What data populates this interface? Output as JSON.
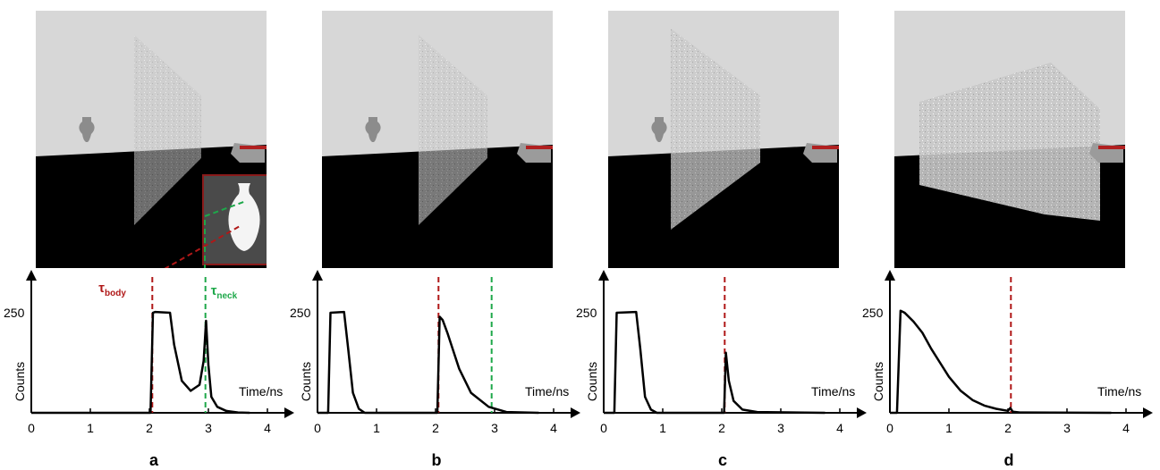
{
  "colors": {
    "wall_bg": "#d7d7d7",
    "floor": "#000000",
    "body_marker": "#b01818",
    "neck_marker": "#1ea84a",
    "curve": "#000000"
  },
  "inset": {
    "present_in_panel": "a",
    "frame_color": "#8a1a1a"
  },
  "labels": {
    "tau_body": "τ",
    "tau_body_sub": "body",
    "tau_neck": "τ",
    "tau_neck_sub": "neck"
  },
  "chart_data": [
    {
      "type": "line",
      "panel_letter": "a",
      "xlabel": "Time/ns",
      "ylabel": "Counts",
      "xlim": [
        0,
        4.3
      ],
      "ylim": [
        0,
        300
      ],
      "xticks": [
        "0",
        "1",
        "2",
        "3",
        "4"
      ],
      "ytick_label": "250",
      "markers": [
        {
          "name": "τbody",
          "x": 2.05,
          "color": "#b01818"
        },
        {
          "name": "τneck",
          "x": 2.95,
          "color": "#1ea84a"
        }
      ],
      "series": [
        {
          "x": [
            0,
            2.02,
            2.06,
            2.1,
            2.35,
            2.42,
            2.55,
            2.7,
            2.85,
            2.92,
            2.96,
            3.0,
            3.05,
            3.15,
            3.3,
            3.5,
            3.7
          ],
          "y": [
            0,
            0,
            250,
            252,
            250,
            170,
            80,
            55,
            70,
            130,
            230,
            120,
            40,
            15,
            5,
            1,
            0
          ]
        }
      ]
    },
    {
      "type": "line",
      "panel_letter": "b",
      "xlabel": "Time/ns",
      "ylabel": "Counts",
      "xlim": [
        0,
        4.3
      ],
      "ylim": [
        0,
        300
      ],
      "xticks": [
        "0",
        "1",
        "2",
        "3",
        "4"
      ],
      "ytick_label": "250",
      "markers": [
        {
          "name": "τbody",
          "x": 2.05,
          "color": "#b01818"
        },
        {
          "name": "τneck",
          "x": 2.95,
          "color": "#1ea84a"
        }
      ],
      "series": [
        {
          "x": [
            0,
            0.18,
            0.22,
            0.45,
            0.52,
            0.6,
            0.7,
            0.8,
            2.03,
            2.07,
            2.12,
            2.2,
            2.4,
            2.6,
            2.9,
            3.2,
            3.75
          ],
          "y": [
            0,
            0,
            250,
            252,
            160,
            50,
            10,
            0,
            0,
            240,
            232,
            200,
            110,
            50,
            15,
            2,
            0
          ]
        }
      ]
    },
    {
      "type": "line",
      "panel_letter": "c",
      "xlabel": "Time/ns",
      "ylabel": "Counts",
      "xlim": [
        0,
        4.3
      ],
      "ylim": [
        0,
        300
      ],
      "xticks": [
        "0",
        "1",
        "2",
        "3",
        "4"
      ],
      "ytick_label": "250",
      "markers": [
        {
          "name": "τbody",
          "x": 2.05,
          "color": "#b01818"
        }
      ],
      "series": [
        {
          "x": [
            0,
            0.18,
            0.22,
            0.55,
            0.62,
            0.7,
            0.8,
            0.9,
            2.04,
            2.07,
            2.12,
            2.2,
            2.35,
            2.6,
            3.75
          ],
          "y": [
            0,
            0,
            250,
            252,
            160,
            40,
            8,
            0,
            0,
            150,
            80,
            30,
            8,
            2,
            0
          ]
        }
      ]
    },
    {
      "type": "line",
      "panel_letter": "d",
      "xlabel": "Time/ns",
      "ylabel": "Counts",
      "xlim": [
        0,
        4.3
      ],
      "ylim": [
        0,
        300
      ],
      "xticks": [
        "0",
        "1",
        "2",
        "3",
        "4"
      ],
      "ytick_label": "250",
      "markers": [
        {
          "name": "τbody",
          "x": 2.05,
          "color": "#b01818"
        }
      ],
      "series": [
        {
          "x": [
            0,
            0.12,
            0.18,
            0.25,
            0.4,
            0.55,
            0.7,
            0.85,
            1.0,
            1.2,
            1.4,
            1.6,
            1.8,
            2.0,
            2.04,
            2.08,
            2.2,
            3.75
          ],
          "y": [
            0,
            0,
            255,
            250,
            228,
            200,
            160,
            125,
            90,
            55,
            32,
            18,
            10,
            5,
            12,
            3,
            1,
            0
          ]
        }
      ]
    }
  ]
}
